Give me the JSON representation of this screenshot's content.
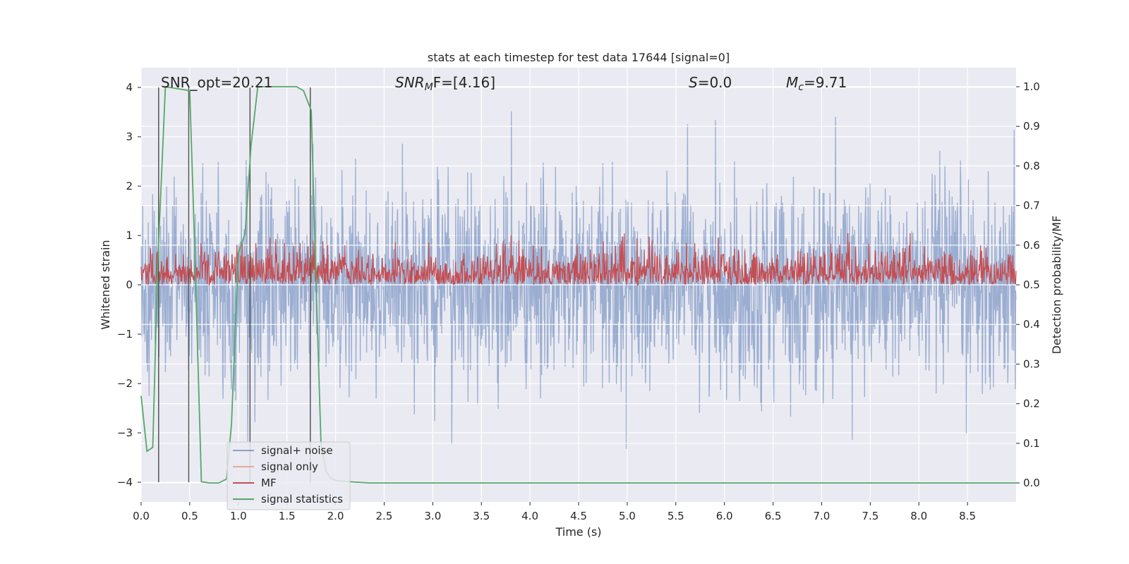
{
  "chart_data": {
    "type": "line",
    "title": "stats at each timestep for test data 17644 [signal=0]",
    "xlabel": "Time (s)",
    "ylabel": "Whitened strain",
    "ylabel_right": "Detection probability/MF",
    "xlim": [
      0.0,
      9.0
    ],
    "ylim": [
      -4.4,
      4.4
    ],
    "ylim_right": [
      -0.048,
      1.048
    ],
    "x_ticks": [
      0.0,
      0.5,
      1.0,
      1.5,
      2.0,
      2.5,
      3.0,
      3.5,
      4.0,
      4.5,
      5.0,
      5.5,
      6.0,
      6.5,
      7.0,
      7.5,
      8.0,
      8.5
    ],
    "x_tick_labels": [
      "0.0",
      "0.5",
      "1.0",
      "1.5",
      "2.0",
      "2.5",
      "3.0",
      "3.5",
      "4.0",
      "4.5",
      "5.0",
      "5.5",
      "6.0",
      "6.5",
      "7.0",
      "7.5",
      "8.0",
      "8.5"
    ],
    "y_ticks": [
      -4,
      -3,
      -2,
      -1,
      0,
      1,
      2,
      3,
      4
    ],
    "y_tick_labels": [
      "−4",
      "−3",
      "−2",
      "−1",
      "0",
      "1",
      "2",
      "3",
      "4"
    ],
    "y_right_ticks": [
      0.0,
      0.1,
      0.2,
      0.3,
      0.4,
      0.5,
      0.6,
      0.7,
      0.8,
      0.9,
      1.0
    ],
    "y_right_tick_labels": [
      "0.0",
      "0.1",
      "0.2",
      "0.3",
      "0.4",
      "0.5",
      "0.6",
      "0.7",
      "0.8",
      "0.9",
      "1.0"
    ],
    "annotations": {
      "snr_opt": "SNR_opt=20.21",
      "snr_mf_prefix": "SNR",
      "snr_mf_sub": "M",
      "snr_mf_suffix": "F=[4.16]",
      "s_label": "S",
      "s_value": "=0.0",
      "mc_label": "M",
      "mc_sub": "c",
      "mc_value": "=9.71"
    },
    "series": [
      {
        "name": "signal+ noise",
        "color": "#4c72b0",
        "axis": "left",
        "description": "whitened strain noise, roughly symmetric about 0 with peaks up to about ±4",
        "amplitude_std": 1.0
      },
      {
        "name": "signal only",
        "color": "#dd8452",
        "axis": "left",
        "values_note": "zero (signal=0)"
      },
      {
        "name": "MF",
        "color": "#c44e52",
        "axis": "right",
        "baseline": 0.5,
        "typical_range": [
          0.5,
          0.62
        ],
        "max": 0.63
      },
      {
        "name": "signal statistics",
        "color": "#55a868",
        "axis": "right",
        "x": [
          0.0,
          0.06,
          0.12,
          0.17,
          0.25,
          0.5,
          0.55,
          0.62,
          0.7,
          0.8,
          0.88,
          0.93,
          1.0,
          1.07,
          1.13,
          1.2,
          1.3,
          1.6,
          1.67,
          1.75,
          1.8,
          1.85,
          1.9,
          1.95,
          2.0,
          2.1,
          2.2,
          2.35,
          9.0
        ],
        "values": [
          0.22,
          0.08,
          0.09,
          0.55,
          1.0,
          0.99,
          0.6,
          0.003,
          0.0,
          0.0,
          0.01,
          0.15,
          0.58,
          0.63,
          0.85,
          1.0,
          1.0,
          1.0,
          0.99,
          0.94,
          0.5,
          0.1,
          0.03,
          0.012,
          0.006,
          0.004,
          0.002,
          0.0,
          0.0
        ]
      }
    ],
    "vertical_lines_x": [
      0.18,
      0.49,
      1.12,
      1.74
    ],
    "vertical_lines_range": [
      -4,
      4
    ],
    "legend": {
      "position": "lower-left",
      "entries": [
        "signal+ noise",
        "signal only",
        "MF",
        "signal statistics"
      ]
    },
    "grid": true
  }
}
